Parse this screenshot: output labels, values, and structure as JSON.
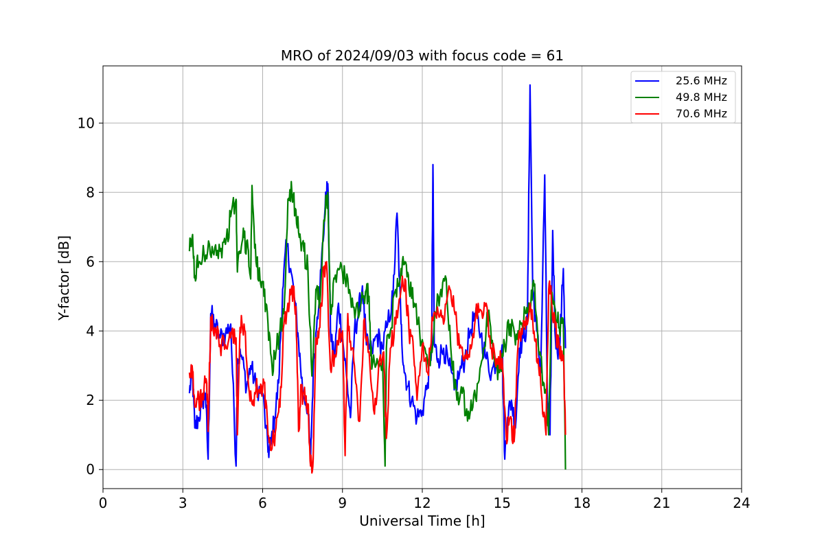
{
  "chart_data": {
    "type": "line",
    "title": "MRO of 2024/09/03 with focus code = 61",
    "xlabel": "Universal Time [h]",
    "ylabel": "Y-factor [dB]",
    "xlim": [
      0,
      24
    ],
    "ylim": [
      -0.55,
      11.65
    ],
    "xticks": [
      0,
      3,
      6,
      9,
      12,
      15,
      18,
      21,
      24
    ],
    "yticks": [
      0,
      2,
      4,
      6,
      8,
      10
    ],
    "grid": true,
    "legend_position": "top-right",
    "series": [
      {
        "name": "25.6 MHz",
        "color": "#0000ff",
        "x": [
          3.25,
          3.35,
          3.45,
          3.6,
          3.75,
          3.85,
          3.95,
          4.05,
          4.2,
          4.4,
          4.6,
          4.8,
          5.0,
          5.05,
          5.2,
          5.4,
          5.55,
          5.75,
          6.0,
          6.2,
          6.3,
          6.45,
          6.6,
          6.75,
          6.9,
          7.05,
          7.2,
          7.35,
          7.5,
          7.7,
          7.8,
          7.9,
          8.05,
          8.2,
          8.35,
          8.45,
          8.55,
          8.7,
          8.85,
          9.0,
          9.15,
          9.3,
          9.45,
          9.6,
          9.75,
          9.9,
          10.1,
          10.3,
          10.5,
          10.7,
          10.9,
          11.05,
          11.2,
          11.3,
          11.45,
          11.6,
          11.8,
          12.0,
          12.2,
          12.35,
          12.4,
          12.45,
          12.6,
          12.8,
          13.0,
          13.2,
          13.4,
          13.6,
          13.8,
          14.0,
          14.2,
          14.4,
          14.6,
          14.8,
          15.0,
          15.1,
          15.2,
          15.35,
          15.5,
          15.65,
          15.8,
          15.95,
          16.05,
          16.15,
          16.3,
          16.45,
          16.6,
          16.7,
          16.8,
          16.9,
          17.0,
          17.15,
          17.3,
          17.38
        ],
        "values": [
          2.2,
          2.9,
          1.2,
          1.5,
          2.0,
          2.2,
          0.3,
          4.5,
          4.2,
          3.8,
          3.9,
          4.2,
          0.1,
          3.2,
          3.3,
          2.4,
          3.0,
          2.4,
          2.2,
          0.5,
          0.7,
          1.5,
          2.5,
          5.2,
          6.5,
          5.8,
          4.9,
          3.7,
          2.3,
          1.8,
          0.2,
          2.8,
          4.4,
          5.8,
          7.6,
          8.25,
          4.0,
          3.2,
          4.8,
          3.8,
          2.7,
          1.5,
          4.0,
          4.5,
          5.3,
          3.6,
          3.4,
          3.9,
          3.5,
          4.2,
          5.0,
          7.4,
          4.2,
          3.0,
          2.4,
          2.0,
          1.5,
          1.7,
          2.5,
          3.5,
          8.8,
          3.6,
          3.2,
          3.5,
          3.0,
          2.3,
          2.8,
          3.2,
          4.0,
          4.5,
          3.9,
          3.2,
          2.8,
          3.2,
          3.6,
          0.3,
          1.5,
          2.0,
          1.2,
          3.5,
          3.8,
          4.2,
          11.1,
          5.2,
          4.0,
          2.8,
          8.5,
          2.0,
          1.0,
          6.9,
          3.8,
          3.4,
          5.8,
          3.5
        ]
      },
      {
        "name": "49.8 MHz",
        "color": "#008000",
        "x": [
          3.25,
          3.35,
          3.45,
          3.6,
          3.8,
          4.0,
          4.2,
          4.4,
          4.6,
          4.8,
          5.0,
          5.05,
          5.15,
          5.3,
          5.45,
          5.55,
          5.6,
          5.75,
          5.9,
          6.05,
          6.2,
          6.35,
          6.5,
          6.65,
          6.8,
          6.95,
          7.1,
          7.25,
          7.4,
          7.55,
          7.7,
          7.85,
          8.0,
          8.15,
          8.3,
          8.45,
          8.55,
          8.7,
          8.9,
          9.1,
          9.3,
          9.5,
          9.7,
          9.9,
          10.0,
          10.1,
          10.3,
          10.5,
          10.6,
          10.65,
          10.8,
          11.0,
          11.2,
          11.35,
          11.5,
          11.7,
          11.9,
          12.1,
          12.3,
          12.5,
          12.7,
          12.9,
          13.1,
          13.3,
          13.5,
          13.7,
          13.9,
          14.1,
          14.3,
          14.5,
          14.7,
          14.9,
          15.1,
          15.3,
          15.5,
          15.7,
          15.9,
          16.05,
          16.2,
          16.35,
          16.5,
          16.65,
          16.75,
          16.85,
          17.0,
          17.15,
          17.3,
          17.38
        ],
        "values": [
          6.3,
          6.7,
          5.6,
          6.0,
          6.2,
          6.5,
          6.4,
          6.3,
          6.5,
          7.3,
          7.8,
          5.7,
          6.3,
          6.7,
          6.4,
          5.5,
          8.2,
          6.0,
          5.5,
          5.0,
          4.2,
          3.0,
          3.4,
          4.0,
          4.5,
          7.8,
          8.0,
          7.5,
          6.8,
          6.3,
          5.8,
          2.7,
          5.2,
          4.8,
          7.2,
          8.0,
          4.5,
          5.5,
          5.8,
          5.5,
          5.0,
          4.6,
          4.8,
          5.2,
          5.0,
          2.9,
          3.2,
          3.2,
          0.1,
          3.5,
          4.0,
          5.2,
          5.8,
          6.0,
          5.2,
          4.8,
          4.0,
          3.5,
          3.0,
          4.5,
          5.2,
          5.5,
          3.2,
          2.0,
          2.2,
          1.4,
          1.8,
          2.5,
          3.5,
          4.6,
          3.2,
          2.8,
          3.6,
          4.2,
          3.6,
          4.2,
          4.5,
          4.8,
          5.3,
          3.6,
          2.8,
          2.2,
          1.0,
          5.0,
          4.6,
          4.1,
          4.3,
          0.0
        ]
      },
      {
        "name": "70.6 MHz",
        "color": "#ff0000",
        "x": [
          3.25,
          3.35,
          3.45,
          3.6,
          3.75,
          3.9,
          3.95,
          4.05,
          4.2,
          4.4,
          4.6,
          4.8,
          5.0,
          5.05,
          5.15,
          5.3,
          5.45,
          5.6,
          5.75,
          5.9,
          6.05,
          6.2,
          6.35,
          6.5,
          6.65,
          6.8,
          6.95,
          7.1,
          7.25,
          7.35,
          7.45,
          7.6,
          7.7,
          7.8,
          7.9,
          8.0,
          8.15,
          8.3,
          8.4,
          8.55,
          8.7,
          8.85,
          9.0,
          9.1,
          9.2,
          9.35,
          9.5,
          9.65,
          9.8,
          10.0,
          10.2,
          10.4,
          10.55,
          10.65,
          10.8,
          11.0,
          11.2,
          11.35,
          11.5,
          11.65,
          11.8,
          12.0,
          12.2,
          12.4,
          12.6,
          12.8,
          13.0,
          13.2,
          13.4,
          13.6,
          13.8,
          14.0,
          14.2,
          14.4,
          14.6,
          14.8,
          15.0,
          15.15,
          15.3,
          15.45,
          15.6,
          15.75,
          15.9,
          16.05,
          16.2,
          16.35,
          16.5,
          16.65,
          16.75,
          16.85,
          17.0,
          17.15,
          17.3,
          17.38
        ],
        "values": [
          2.8,
          3.0,
          1.8,
          2.0,
          2.2,
          2.5,
          1.1,
          4.4,
          4.1,
          3.6,
          3.6,
          3.8,
          3.8,
          1.0,
          4.1,
          4.2,
          2.6,
          1.9,
          2.3,
          2.2,
          2.5,
          1.0,
          0.6,
          1.2,
          1.8,
          4.2,
          4.8,
          5.3,
          4.7,
          1.1,
          2.3,
          2.0,
          1.9,
          0.1,
          0.3,
          3.8,
          4.1,
          5.8,
          6.0,
          2.9,
          3.3,
          3.6,
          4.0,
          0.4,
          4.5,
          3.5,
          2.5,
          1.4,
          4.3,
          3.4,
          1.6,
          3.2,
          3.4,
          0.9,
          3.5,
          4.2,
          5.2,
          5.5,
          4.0,
          3.7,
          2.0,
          3.6,
          2.8,
          4.3,
          4.5,
          4.2,
          5.3,
          4.6,
          3.5,
          3.3,
          3.6,
          4.4,
          4.6,
          4.8,
          3.5,
          3.2,
          3.2,
          1.0,
          1.5,
          0.8,
          3.6,
          3.9,
          4.4,
          4.8,
          4.0,
          3.2,
          2.0,
          1.0,
          5.2,
          4.9,
          4.1,
          3.5,
          3.3,
          1.0
        ]
      }
    ]
  }
}
